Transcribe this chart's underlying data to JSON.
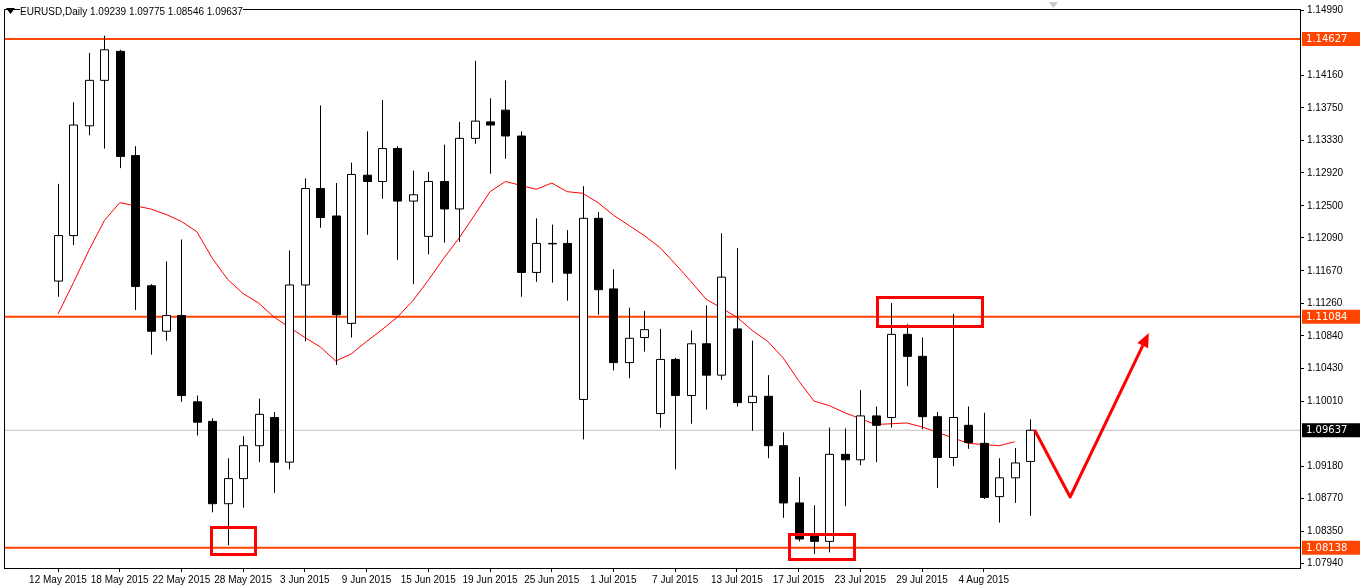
{
  "chart_data": {
    "type": "candlestick",
    "title": "EURUSD,Daily 1.09239 1.09775 1.08546 1.09637",
    "categories": [
      "12 May 2015",
      null,
      null,
      null,
      "18 May 2015",
      null,
      null,
      null,
      "22 May 2015",
      null,
      null,
      null,
      "28 May 2015",
      null,
      null,
      null,
      "3 Jun 2015",
      null,
      null,
      null,
      "9 Jun 2015",
      null,
      null,
      null,
      "15 Jun 2015",
      null,
      null,
      null,
      "19 Jun 2015",
      null,
      null,
      null,
      "25 Jun 2015",
      null,
      null,
      null,
      "1 Jul 2015",
      null,
      null,
      null,
      "7 Jul 2015",
      null,
      null,
      null,
      "13 Jul 2015",
      null,
      null,
      null,
      "17 Jul 2015",
      null,
      null,
      null,
      "23 Jul 2015",
      null,
      null,
      null,
      "29 Jul 2015",
      null,
      null,
      null,
      "4 Aug 2015",
      null,
      null,
      null
    ],
    "ohlc": [
      [
        1.1154,
        1.1278,
        1.1134,
        1.1212
      ],
      [
        1.1212,
        1.1382,
        1.12,
        1.1353
      ],
      [
        1.1352,
        1.1445,
        1.134,
        1.141
      ],
      [
        1.141,
        1.1467,
        1.1323,
        1.1449
      ],
      [
        1.1447,
        1.1449,
        1.1298,
        1.1313
      ],
      [
        1.1314,
        1.1326,
        1.1117,
        1.1147
      ],
      [
        1.1148,
        1.115,
        1.106,
        1.109
      ],
      [
        1.109,
        1.1179,
        1.1078,
        1.111
      ],
      [
        1.111,
        1.1207,
        1.1,
        1.1008
      ],
      [
        1.1,
        1.1008,
        1.0957,
        1.0974
      ],
      [
        1.0975,
        1.0979,
        1.0859,
        1.087
      ],
      [
        1.087,
        1.0928,
        1.0817,
        1.0902
      ],
      [
        1.0902,
        1.0956,
        1.0865,
        1.0944
      ],
      [
        1.0944,
        1.1004,
        1.0923,
        1.0984
      ],
      [
        1.098,
        1.0987,
        1.0884,
        1.0923
      ],
      [
        1.0923,
        1.1193,
        1.0914,
        1.1149
      ],
      [
        1.1149,
        1.1285,
        1.1077,
        1.1272
      ],
      [
        1.1272,
        1.1378,
        1.1222,
        1.1235
      ],
      [
        1.1237,
        1.1279,
        1.1047,
        1.1111
      ],
      [
        1.11,
        1.1305,
        1.1082,
        1.129
      ],
      [
        1.1289,
        1.1345,
        1.1213,
        1.1281
      ],
      [
        1.1281,
        1.1385,
        1.1259,
        1.1323
      ],
      [
        1.1323,
        1.1326,
        1.1181,
        1.1256
      ],
      [
        1.1256,
        1.1295,
        1.115,
        1.1264
      ],
      [
        1.1211,
        1.1293,
        1.1188,
        1.1281
      ],
      [
        1.1281,
        1.1328,
        1.1203,
        1.1246
      ],
      [
        1.1246,
        1.1357,
        1.1204,
        1.1336
      ],
      [
        1.1336,
        1.1435,
        1.1329,
        1.1358
      ],
      [
        1.1357,
        1.1387,
        1.1291,
        1.1353
      ],
      [
        1.1372,
        1.141,
        1.131,
        1.1339
      ],
      [
        1.1339,
        1.1345,
        1.1134,
        1.1165
      ],
      [
        1.1165,
        1.1234,
        1.1153,
        1.1202
      ],
      [
        1.1202,
        1.1226,
        1.1152,
        1.1202
      ],
      [
        1.1202,
        1.1219,
        1.1129,
        1.1164
      ],
      [
        1.1003,
        1.1275,
        1.0952,
        1.1234
      ],
      [
        1.1234,
        1.1242,
        1.1111,
        1.1143
      ],
      [
        1.1144,
        1.1169,
        1.104,
        1.105
      ],
      [
        1.105,
        1.112,
        1.103,
        1.1081
      ],
      [
        1.1082,
        1.1116,
        1.1064,
        1.1092
      ],
      [
        1.0985,
        1.1093,
        1.0967,
        1.1054
      ],
      [
        1.1054,
        1.1056,
        1.0914,
        1.1008
      ],
      [
        1.1008,
        1.1091,
        1.0972,
        1.1074
      ],
      [
        1.1074,
        1.1123,
        1.099,
        1.1034
      ],
      [
        1.1034,
        1.1215,
        1.1028,
        1.1159
      ],
      [
        1.1093,
        1.1196,
        1.0994,
        1.0999
      ],
      [
        1.0999,
        1.1078,
        1.0963,
        1.1007
      ],
      [
        1.1007,
        1.1034,
        1.0928,
        1.0944
      ],
      [
        1.0944,
        1.0961,
        1.0852,
        1.0871
      ],
      [
        1.0871,
        1.0904,
        1.0822,
        1.0825
      ],
      [
        1.0829,
        1.0868,
        1.0806,
        1.0822
      ],
      [
        1.0822,
        1.0967,
        1.0808,
        1.0933
      ],
      [
        1.0933,
        1.0966,
        1.0867,
        1.0926
      ],
      [
        1.0926,
        1.1015,
        1.0919,
        1.0982
      ],
      [
        1.0982,
        1.0994,
        1.0923,
        1.097
      ],
      [
        1.098,
        1.1126,
        1.0967,
        1.1086
      ],
      [
        1.1086,
        1.1099,
        1.102,
        1.1058
      ],
      [
        1.1058,
        1.1082,
        1.0965,
        1.0981
      ],
      [
        1.0981,
        1.0987,
        1.089,
        1.0929
      ],
      [
        1.0929,
        1.1112,
        1.0918,
        1.098
      ],
      [
        1.097,
        1.0994,
        1.094,
        1.0948
      ],
      [
        1.0947,
        1.0986,
        1.0876,
        1.0878
      ],
      [
        1.0879,
        1.0928,
        1.0846,
        1.0903
      ],
      [
        1.0903,
        1.0941,
        1.0871,
        1.0922
      ],
      [
        1.09239,
        1.09775,
        1.08546,
        1.09637
      ]
    ],
    "series": [
      {
        "type": "line",
        "color": "#ff0000",
        "values": [
          1.1112,
          1.1152,
          1.1193,
          1.1231,
          1.1254,
          null,
          1.1246,
          1.1239,
          1.123,
          1.1217,
          1.1183,
          1.1156,
          1.1138,
          1.1126,
          1.1108,
          null,
          1.1082,
          1.107,
          1.1052,
          1.1061,
          1.1077,
          1.1092,
          1.1108,
          1.1129,
          1.1155,
          1.1183,
          1.1209,
          1.1238,
          1.1268,
          1.1281,
          null,
          1.1271,
          1.1279,
          1.1268,
          1.1266,
          1.1254,
          1.1238,
          1.1225,
          1.1212,
          1.1197,
          1.1176,
          1.1154,
          1.1131,
          null,
          1.1108,
          1.1091,
          1.1077,
          1.1056,
          1.1027,
          1.1001,
          1.0995,
          1.0986,
          null,
          1.0971,
          null,
          1.0973,
          1.0968,
          null,
          null,
          1.0947,
          null,
          1.0944,
          1.0949,
          null
        ]
      }
    ],
    "ylim": [
      1.0788,
      1.1501
    ],
    "yticks": [
      {
        "value": 1.1499,
        "label": "1.14990"
      },
      {
        "value": 1.1416,
        "label": "1.14160"
      },
      {
        "value": 1.1375,
        "label": "1.13750"
      },
      {
        "value": 1.1333,
        "label": "1.13330"
      },
      {
        "value": 1.1292,
        "label": "1.12920"
      },
      {
        "value": 1.125,
        "label": "1.12500"
      },
      {
        "value": 1.1209,
        "label": "1.12090"
      },
      {
        "value": 1.1167,
        "label": "1.11670"
      },
      {
        "value": 1.1126,
        "label": "1.11260"
      },
      {
        "value": 1.1084,
        "label": "1.10840"
      },
      {
        "value": 1.1043,
        "label": "1.10430"
      },
      {
        "value": 1.1001,
        "label": "1.10010"
      },
      {
        "value": 1.0918,
        "label": "1.09180"
      },
      {
        "value": 1.0877,
        "label": "1.08770"
      },
      {
        "value": 1.0835,
        "label": "1.08350"
      },
      {
        "value": 1.0794,
        "label": "1.07940"
      }
    ],
    "ref_lines": [
      {
        "axis": "y",
        "value": 1.14627,
        "label": "1.14627",
        "color": "#ff4500"
      },
      {
        "axis": "y",
        "value": 1.11084,
        "label": "1.11084",
        "color": "#ff4500"
      },
      {
        "axis": "y",
        "value": 1.08138,
        "label": "1.08138",
        "color": "#ff4500"
      },
      {
        "axis": "y",
        "value": 1.09637,
        "label": "1.09637",
        "color": "#c0c0c0"
      }
    ],
    "grid": false,
    "legend": false
  }
}
